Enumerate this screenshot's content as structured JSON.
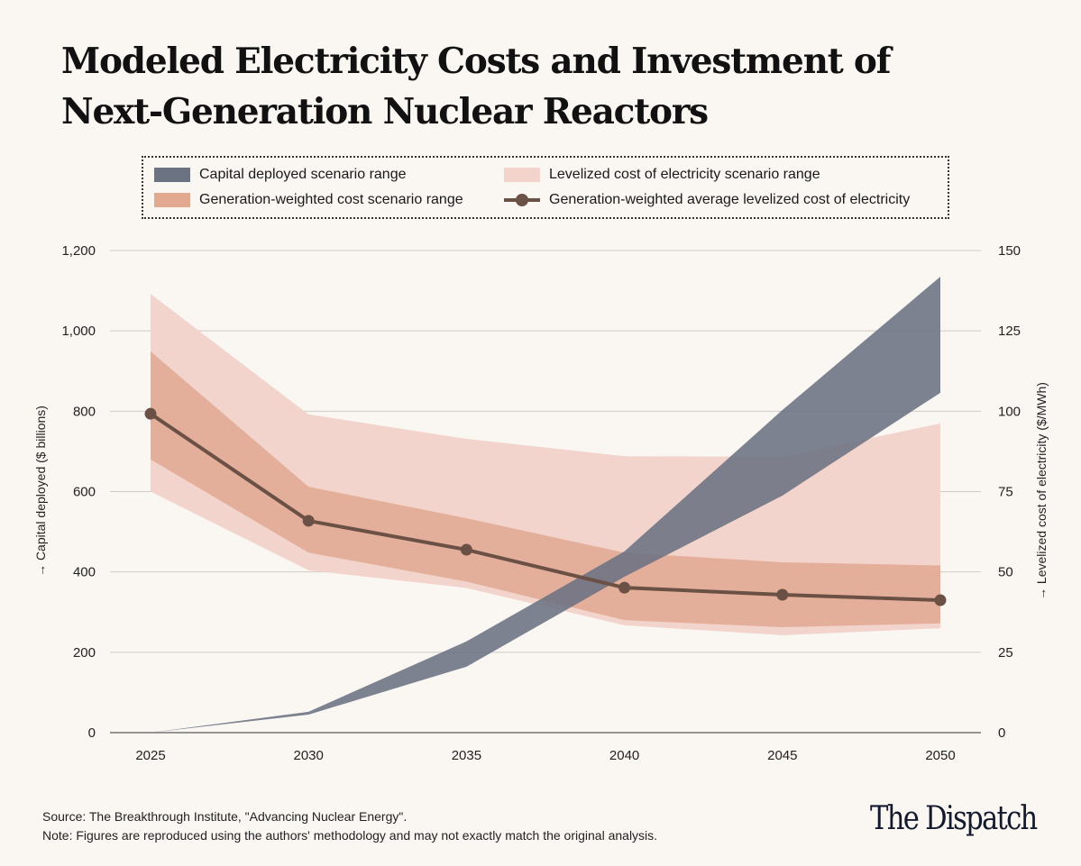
{
  "title_line1": "Modeled Electricity Costs and Investment of",
  "title_line2": "Next-Generation Nuclear Reactors",
  "legend": {
    "capital": "Capital deployed scenario range",
    "lcoe": "Levelized cost of electricity scenario range",
    "gen": "Generation-weighted cost scenario range",
    "avg": "Generation-weighted average levelized cost of electricity"
  },
  "colors": {
    "capital": "#6b7282",
    "lcoe": "#f2d4cc",
    "gen": "#e2a890",
    "avg": "#6b5045",
    "grid": "#cfcac6"
  },
  "chart_data": {
    "type": "area",
    "x": [
      2025,
      2030,
      2035,
      2040,
      2045,
      2050
    ],
    "xticks": [
      "2025",
      "2030",
      "2035",
      "2040",
      "2045",
      "2050"
    ],
    "ylabel_left": "Capital deployed ($ billions)",
    "ylabel_right": "Levelized cost of electricity ($/MWh)",
    "ylim_left": [
      0,
      1200
    ],
    "ylim_right": [
      0,
      150
    ],
    "yticks_left": [
      "0",
      "200",
      "400",
      "600",
      "800",
      "1,000",
      "1,200"
    ],
    "yticks_right": [
      "0",
      "25",
      "50",
      "75",
      "100",
      "125",
      "150"
    ],
    "grid": true,
    "series": [
      {
        "name": "Capital deployed scenario range",
        "axis": "left",
        "low": [
          0,
          45,
          164,
          388,
          590,
          846
        ],
        "high": [
          0,
          52,
          227,
          451,
          803,
          1135
        ]
      },
      {
        "name": "Levelized cost of electricity scenario range",
        "axis": "right",
        "low": [
          75,
          50.5,
          45,
          33.4,
          30.3,
          32.5
        ],
        "high": [
          136.5,
          99,
          91.4,
          86,
          85.8,
          96.2
        ]
      },
      {
        "name": "Generation-weighted cost scenario range",
        "axis": "right",
        "low": [
          85,
          56,
          47,
          35,
          32.8,
          34
        ],
        "high": [
          118.6,
          76.5,
          66.7,
          56,
          53,
          52
        ]
      },
      {
        "name": "Generation-weighted average levelized cost of electricity",
        "axis": "right",
        "values": [
          99.2,
          65.9,
          56.9,
          45.1,
          42.9,
          41.2
        ]
      }
    ]
  },
  "footer": {
    "source": "Source: The Breakthrough Institute, \"Advancing Nuclear Energy\".",
    "note": "Note: Figures are reproduced using the authors' methodology and may not exactly match the original analysis."
  },
  "logo": "The Dispatch"
}
